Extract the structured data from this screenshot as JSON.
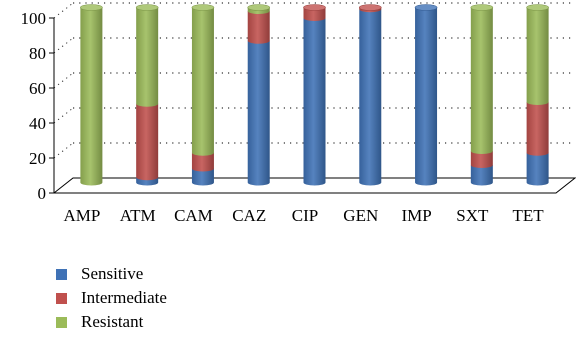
{
  "chart_data": {
    "type": "bar",
    "stacked": true,
    "three_d": true,
    "categories": [
      "AMP",
      "ATM",
      "CAM",
      "CAZ",
      "CIP",
      "GEN",
      "IMP",
      "SXT",
      "TET"
    ],
    "series": [
      {
        "name": "Sensitive",
        "color": "#3f72b6",
        "values": [
          0,
          3,
          8,
          81,
          94,
          99,
          100,
          10,
          17
        ]
      },
      {
        "name": "Intermediate",
        "color": "#c0504d",
        "values": [
          0,
          42,
          9,
          17,
          6,
          1,
          0,
          8,
          29
        ]
      },
      {
        "name": "Resistant",
        "color": "#9bbb59",
        "values": [
          100,
          55,
          83,
          2,
          0,
          0,
          0,
          82,
          54
        ]
      }
    ],
    "ylim": [
      0,
      100
    ],
    "yticks": [
      "0",
      "20",
      "40",
      "60",
      "80",
      "100"
    ],
    "grid": "dotted",
    "legend_position": "bottom-left"
  }
}
